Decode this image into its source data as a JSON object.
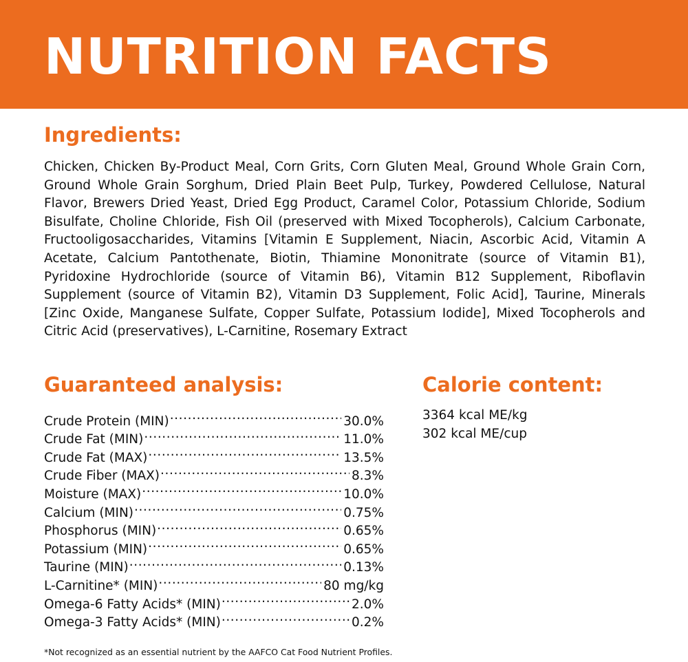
{
  "header": {
    "title": "NUTRITION FACTS",
    "accent_color": "#ec6c1f"
  },
  "ingredients": {
    "heading": "Ingredients:",
    "text": "Chicken, Chicken By-Product Meal, Corn Grits, Corn Gluten Meal, Ground Whole Grain Corn, Ground Whole Grain Sorghum, Dried Plain Beet Pulp, Turkey, Powdered Cellulose, Natural Flavor, Brewers Dried Yeast, Dried Egg Product, Caramel Color, Potassium Chloride, Sodium Bisulfate, Choline Chloride, Fish Oil (preserved with Mixed Tocopherols), Calcium Carbonate, Fructooligosaccharides, Vitamins [Vitamin E Supplement, Niacin, Ascorbic Acid, Vitamin A Acetate, Calcium Pantothenate, Biotin, Thiamine Mononitrate (source of Vitamin B1), Pyridoxine Hydrochloride (source of Vitamin B6), Vitamin B12 Supplement, Riboflavin Supplement (source of Vitamin B2), Vitamin D3 Supplement, Folic Acid], Taurine, Minerals [Zinc Oxide, Manganese Sulfate, Copper Sulfate, Potassium Iodide], Mixed Tocopherols and Citric Acid (preservatives), L-Carnitine, Rosemary Extract"
  },
  "guaranteed_analysis": {
    "heading": "Guaranteed analysis:",
    "rows": [
      {
        "label": "Crude Protein (MIN)",
        "value": "30.0%"
      },
      {
        "label": "Crude Fat (MIN)",
        "value": "11.0%"
      },
      {
        "label": "Crude Fat (MAX)",
        "value": "13.5%"
      },
      {
        "label": "Crude Fiber (MAX)",
        "value": "8.3%"
      },
      {
        "label": "Moisture (MAX)",
        "value": "10.0%"
      },
      {
        "label": "Calcium (MIN)",
        "value": "0.75%"
      },
      {
        "label": "Phosphorus (MIN)",
        "value": "0.65%"
      },
      {
        "label": "Potassium (MIN)",
        "value": "0.65%"
      },
      {
        "label": "Taurine (MIN)",
        "value": "0.13%"
      },
      {
        "label": "L-Carnitine* (MIN)",
        "value": "80 mg/kg"
      },
      {
        "label": "Omega-6 Fatty Acids* (MIN)",
        "value": "2.0%"
      },
      {
        "label": "Omega-3 Fatty Acids* (MIN)",
        "value": "0.2%"
      }
    ]
  },
  "calorie_content": {
    "heading": "Calorie content:",
    "lines": [
      "3364 kcal ME/kg",
      "302 kcal ME/cup"
    ]
  },
  "footnote": {
    "text": "*Not recognized as an essential nutrient by the AAFCO Cat Food Nutrient Profiles."
  }
}
